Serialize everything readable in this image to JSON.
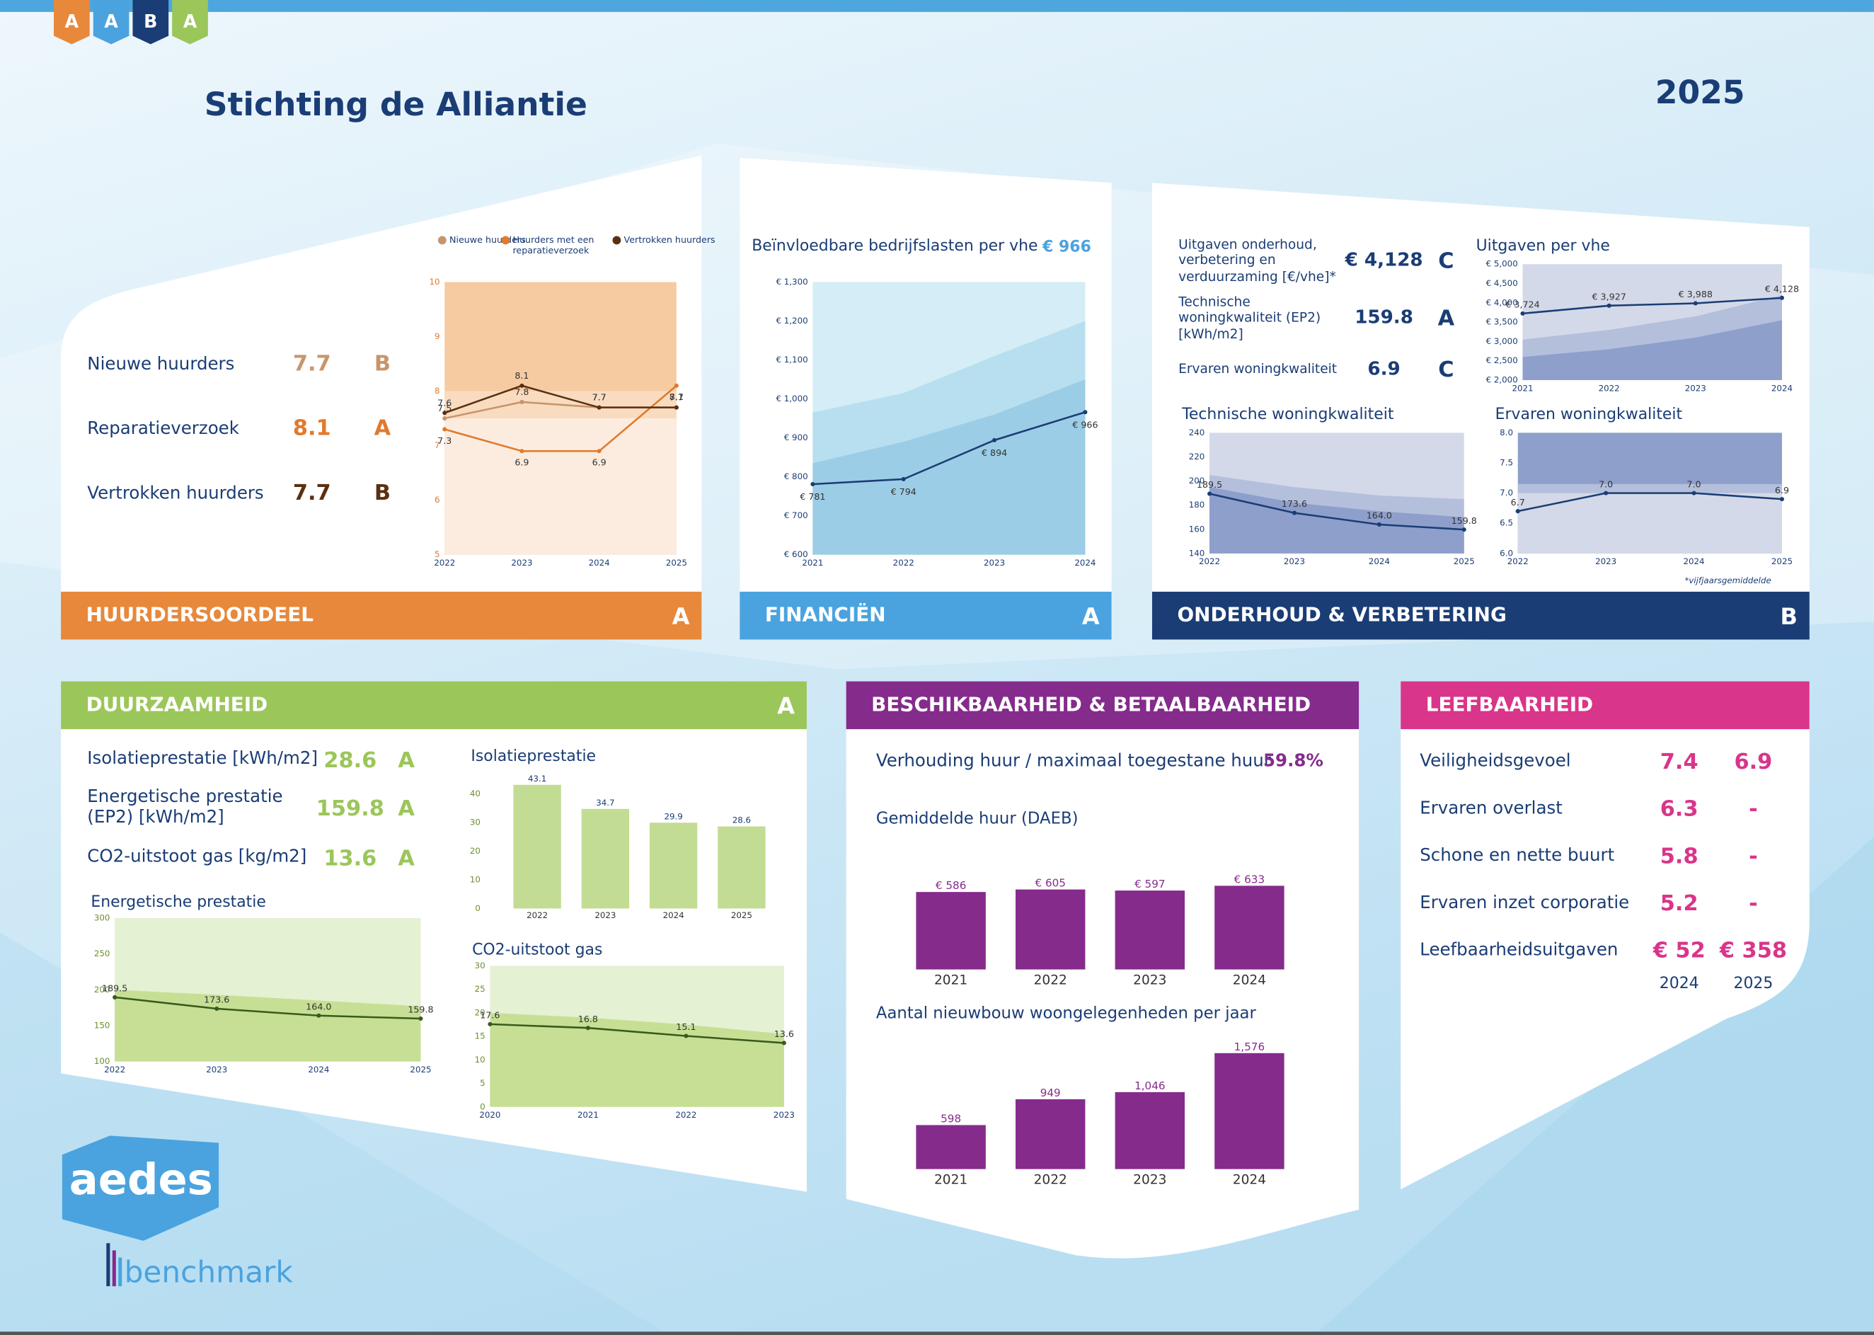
{
  "header": {
    "logo_letters": [
      "A",
      "A",
      "B",
      "A"
    ],
    "title": "Stichting de Alliantie",
    "year": "2025"
  },
  "panels": {
    "huurders": {
      "heading": "HUURDERSOORDEEL",
      "grade": "A",
      "rows": [
        {
          "label": "Nieuwe huurders",
          "value": "7.7",
          "grade": "B",
          "color": "#c8956b"
        },
        {
          "label": "Reparatieverzoek",
          "value": "8.1",
          "grade": "A",
          "color": "#e07a2d"
        },
        {
          "label": "Vertrokken huurders",
          "value": "7.7",
          "grade": "B",
          "color": "#5a3012"
        }
      ]
    },
    "financien": {
      "heading": "FINANCIËN",
      "grade": "A",
      "kpi_label": "Beïnvloedbare bedrijfslasten per vhe",
      "kpi_value": "€ 966"
    },
    "onderhoud": {
      "heading": "ONDERHOUD & VERBETERING",
      "grade": "B",
      "footnote": "*vijfjaarsgemiddelde",
      "rows": [
        {
          "label": "Uitgaven onderhoud, verbetering en verduurzaming [€/vhe]*",
          "value": "€ 4,128",
          "grade": "C"
        },
        {
          "label": "Technische woningkwaliteit (EP2) [kWh/m2]",
          "value": "159.8",
          "grade": "A"
        },
        {
          "label": "Ervaren woningkwaliteit",
          "value": "6.9",
          "grade": "C"
        }
      ]
    },
    "duurzaamheid": {
      "heading": "DUURZAAMHEID",
      "grade": "A",
      "rows": [
        {
          "label": "Isolatieprestatie [kWh/m2]",
          "value": "28.6",
          "grade": "A"
        },
        {
          "label": "Energetische prestatie (EP2) [kWh/m2]",
          "value": "159.8",
          "grade": "A"
        },
        {
          "label": "CO2-uitstoot gas [kg/m2]",
          "value": "13.6",
          "grade": "A"
        }
      ]
    },
    "beschikbaarheid": {
      "heading": "BESCHIKBAARHEID & BETAALBAARHEID",
      "kpi_label": "Verhouding huur / maximaal toegestane huur",
      "kpi_value": "59.8%"
    },
    "leefbaarheid": {
      "heading": "LEEFBAARHEID",
      "columns": [
        "2024",
        "2025"
      ],
      "rows": [
        {
          "label": "Veiligheidsgevoel",
          "values": [
            "7.4",
            "6.9"
          ]
        },
        {
          "label": "Ervaren overlast",
          "values": [
            "6.3",
            "-"
          ]
        },
        {
          "label": "Schone en nette buurt",
          "values": [
            "5.8",
            "-"
          ]
        },
        {
          "label": "Ervaren inzet corporatie",
          "values": [
            "5.2",
            "-"
          ]
        },
        {
          "label": "Leefbaarheidsuitgaven",
          "values": [
            "€ 52",
            "€ 358"
          ]
        }
      ]
    }
  },
  "chart_data": [
    {
      "type": "line",
      "legend": true,
      "x": [
        2022,
        2023,
        2024,
        2025
      ],
      "xlim": [
        2022,
        2025
      ],
      "xticks": [
        2022,
        2023,
        2024,
        2025
      ],
      "ylim": [
        5,
        10
      ],
      "yticks": [
        5,
        6,
        7,
        8,
        9,
        10
      ],
      "bands": [
        {
          "color": "#f6cba2",
          "values": [
            10,
            10,
            10,
            10
          ]
        },
        {
          "color": "#f9dcc0",
          "values": [
            8,
            8,
            8,
            8
          ]
        },
        {
          "color": "#fcece0",
          "values": [
            7.5,
            7.5,
            7.5,
            7.5
          ]
        }
      ],
      "series": [
        {
          "name": "Nieuwe huurders",
          "color": "#c8956b",
          "values": [
            7.5,
            7.8,
            7.7,
            7.7
          ]
        },
        {
          "name": "Huurders met een reparatieverzoek",
          "color": "#e07a2d",
          "values": [
            7.3,
            6.9,
            6.9,
            8.1
          ]
        },
        {
          "name": "Vertrokken huurders",
          "color": "#5a3012",
          "values": [
            7.6,
            8.1,
            7.7,
            7.7
          ]
        }
      ]
    },
    {
      "type": "line",
      "x": [
        2021,
        2022,
        2023,
        2024
      ],
      "xlim": [
        2021,
        2024
      ],
      "xticks": [
        2021,
        2022,
        2023,
        2024
      ],
      "ylim": [
        600,
        1300
      ],
      "yticks": [
        {
          "value": 600,
          "label": "€ 600"
        },
        {
          "value": 700,
          "label": "€ 700"
        },
        {
          "value": 800,
          "label": "€ 800"
        },
        {
          "value": 900,
          "label": "€ 900"
        },
        {
          "value": 1000,
          "label": "€ 1,000"
        },
        {
          "value": 1100,
          "label": "€ 1,100"
        },
        {
          "value": 1200,
          "label": "€ 1,200"
        },
        {
          "value": 1300,
          "label": "€ 1,300"
        }
      ],
      "bands": [
        {
          "color": "#d4edf6",
          "values": [
            1300,
            1300,
            1300,
            1300
          ]
        },
        {
          "color": "#b8dff0",
          "values": [
            965,
            1015,
            1110,
            1200
          ]
        },
        {
          "color": "#9ccde6",
          "values": [
            835,
            890,
            960,
            1050
          ]
        }
      ],
      "color": "#1a3d75",
      "values": [
        781,
        794,
        894,
        966
      ],
      "value_labels": [
        "€ 781",
        "€ 794",
        "€ 894",
        "€ 966"
      ]
    },
    {
      "type": "line",
      "title": "Uitgaven per vhe",
      "x": [
        2021,
        2022,
        2023,
        2024
      ],
      "xlim": [
        2021,
        2024
      ],
      "xticks": [
        2021,
        2022,
        2023,
        2024
      ],
      "ylim": [
        2000,
        5000
      ],
      "yticks": [
        {
          "value": 2000,
          "label": "€ 2,000"
        },
        {
          "value": 2500,
          "label": "€ 2,500"
        },
        {
          "value": 3000,
          "label": "€ 3,000"
        },
        {
          "value": 3500,
          "label": "€ 3,500"
        },
        {
          "value": 4000,
          "label": "€ 4,000"
        },
        {
          "value": 4500,
          "label": "€ 4,500"
        },
        {
          "value": 5000,
          "label": "€ 5,000"
        }
      ],
      "bands": [
        {
          "color": "#d3d9e8",
          "values": [
            5000,
            5000,
            5000,
            5000
          ]
        },
        {
          "color": "#b4bfdc",
          "values": [
            3050,
            3300,
            3650,
            4200
          ]
        },
        {
          "color": "#8e9fcb",
          "values": [
            2600,
            2800,
            3100,
            3550
          ]
        }
      ],
      "color": "#1a3d75",
      "values": [
        3724,
        3927,
        3988,
        4128
      ],
      "value_labels": [
        "€ 3,724",
        "€ 3,927",
        "€ 3,988",
        "€ 4,128"
      ]
    },
    {
      "type": "line",
      "title": "Technische woningkwaliteit",
      "x": [
        2022,
        2023,
        2024,
        2025
      ],
      "xlim": [
        2022,
        2025
      ],
      "xticks": [
        2022,
        2023,
        2024,
        2025
      ],
      "ylim": [
        140,
        240
      ],
      "yticks": [
        140,
        160,
        180,
        200,
        220,
        240
      ],
      "bands": [
        {
          "color": "#d3d9e8",
          "values": [
            240,
            240,
            240,
            240
          ]
        },
        {
          "color": "#b4bfdc",
          "values": [
            205,
            195,
            188,
            185
          ]
        },
        {
          "color": "#8e9fcb",
          "values": [
            195,
            182,
            175,
            170
          ]
        }
      ],
      "color": "#1a3d75",
      "values": [
        189.5,
        173.6,
        164.0,
        159.8
      ],
      "value_labels": [
        "189.5",
        "173.6",
        "164.0",
        "159.8"
      ]
    },
    {
      "type": "line",
      "title": "Ervaren woningkwaliteit",
      "x": [
        2022,
        2023,
        2024,
        2025
      ],
      "xlim": [
        2022,
        2025
      ],
      "xticks": [
        2022,
        2023,
        2024,
        2025
      ],
      "ylim": [
        6,
        8
      ],
      "yticks": [
        {
          "value": 6,
          "label": "6.0"
        },
        6.5,
        {
          "value": 7,
          "label": "7.0"
        },
        7.5,
        {
          "value": 8,
          "label": "8.0"
        }
      ],
      "bands": [
        {
          "color": "#8e9fcb",
          "values": [
            8,
            8,
            8,
            8
          ]
        },
        {
          "color": "#b4bfdc",
          "values": [
            7.15,
            7.15,
            7.15,
            7.15
          ]
        },
        {
          "color": "#d3d9e8",
          "values": [
            7.0,
            7.0,
            7.0,
            7.0
          ]
        }
      ],
      "color": "#1a3d75",
      "values": [
        6.7,
        7.0,
        7.0,
        6.9
      ],
      "value_labels": [
        "6.7",
        "7.0",
        "7.0",
        "6.9"
      ]
    },
    {
      "type": "bar",
      "title": "Isolatieprestatie",
      "categories": [
        "2022",
        "2023",
        "2024",
        "2025"
      ],
      "values": [
        43.1,
        34.7,
        29.9,
        28.6
      ],
      "color": "#c2dc94",
      "ylim": [
        0,
        45
      ],
      "yticks": [
        0,
        10,
        20,
        30,
        40
      ]
    },
    {
      "type": "line",
      "title": "Energetische prestatie",
      "x": [
        2022,
        2023,
        2024,
        2025
      ],
      "xlim": [
        2022,
        2025
      ],
      "xticks": [
        2022,
        2023,
        2024,
        2025
      ],
      "ylim": [
        100,
        300
      ],
      "yticks": [
        100,
        150,
        200,
        250,
        300
      ],
      "bands": [
        {
          "color": "#e4f1d2",
          "values": [
            300,
            300,
            300,
            300
          ]
        },
        {
          "color": "#c6df95",
          "values": [
            200,
            193,
            185,
            177
          ]
        }
      ],
      "color": "#3a5a1c",
      "values": [
        189.5,
        173.6,
        164.0,
        159.8
      ],
      "value_labels": [
        "189.5",
        "173.6",
        "164.0",
        "159.8"
      ]
    },
    {
      "type": "line",
      "title": "CO2-uitstoot gas",
      "x": [
        2020,
        2021,
        2022,
        2023
      ],
      "xlim": [
        2020,
        2023
      ],
      "xticks": [
        2020,
        2021,
        2022,
        2023
      ],
      "ylim": [
        0,
        30
      ],
      "yticks": [
        0,
        5,
        10,
        15,
        20,
        25,
        30
      ],
      "bands": [
        {
          "color": "#e4f1d2",
          "values": [
            30,
            30,
            30,
            30
          ]
        },
        {
          "color": "#c6df95",
          "values": [
            20,
            19,
            17.5,
            15.5
          ]
        }
      ],
      "color": "#3a5a1c",
      "values": [
        17.6,
        16.8,
        15.1,
        13.6
      ]
    },
    {
      "type": "bar",
      "title": "Gemiddelde huur (DAEB)",
      "categories": [
        "2021",
        "2022",
        "2023",
        "2024"
      ],
      "values": [
        586,
        605,
        597,
        633
      ],
      "value_labels": [
        "€ 586",
        "€ 605",
        "€ 597",
        "€ 633"
      ],
      "color": "#852b8c"
    },
    {
      "type": "bar",
      "title": "Aantal nieuwbouw woongelegenheden per jaar",
      "categories": [
        "2021",
        "2022",
        "2023",
        "2024"
      ],
      "values": [
        598,
        949,
        1046,
        1576
      ],
      "value_labels": [
        "598",
        "949",
        "1,046",
        "1,576"
      ],
      "color": "#852b8c"
    }
  ],
  "footer": {
    "logo": "aedes",
    "benchmark": "benchmark"
  }
}
